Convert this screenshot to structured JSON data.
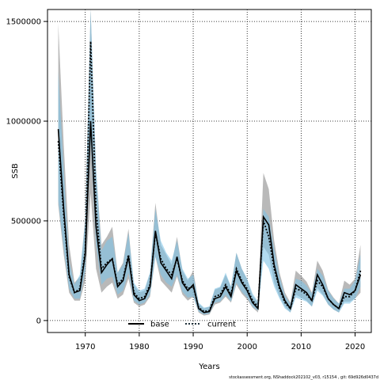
{
  "chart_data": {
    "type": "line",
    "xlabel": "Years",
    "ylabel": "SSB",
    "xlim": [
      1963,
      2023
    ],
    "ylim": [
      -60000,
      1560000
    ],
    "x_ticks": [
      1970,
      1980,
      1990,
      2000,
      2010,
      2020
    ],
    "y_ticks": [
      0,
      500000,
      1000000,
      1500000
    ],
    "y_tick_labels": [
      "0",
      "500000",
      "1000000",
      "1500000"
    ],
    "grid": true,
    "legend_placement": "bottom-center",
    "footnote": "stockassessment.org, NShaddock202102_v03, r15154 , git: 69d926d0437d",
    "x": [
      1965,
      1966,
      1967,
      1968,
      1969,
      1970,
      1971,
      1972,
      1973,
      1974,
      1975,
      1976,
      1977,
      1978,
      1979,
      1980,
      1981,
      1982,
      1983,
      1984,
      1985,
      1986,
      1987,
      1988,
      1989,
      1990,
      1991,
      1992,
      1993,
      1994,
      1995,
      1996,
      1997,
      1998,
      1999,
      2000,
      2001,
      2002,
      2003,
      2004,
      2005,
      2006,
      2007,
      2008,
      2009,
      2010,
      2011,
      2012,
      2013,
      2014,
      2015,
      2016,
      2017,
      2018,
      2019,
      2020,
      2021
    ],
    "series": [
      {
        "name": "base",
        "color": "#000000",
        "band_color": "#808080",
        "values": [
          960000,
          560000,
          230000,
          140000,
          150000,
          330000,
          1000000,
          470000,
          240000,
          280000,
          310000,
          170000,
          200000,
          320000,
          130000,
          100000,
          110000,
          170000,
          450000,
          290000,
          250000,
          210000,
          320000,
          190000,
          150000,
          180000,
          60000,
          40000,
          45000,
          110000,
          120000,
          170000,
          120000,
          250000,
          190000,
          150000,
          90000,
          60000,
          520000,
          480000,
          280000,
          170000,
          100000,
          60000,
          180000,
          160000,
          140000,
          100000,
          230000,
          180000,
          110000,
          80000,
          60000,
          140000,
          130000,
          150000,
          230000
        ],
        "lower": [
          580000,
          330000,
          140000,
          100000,
          100000,
          200000,
          640000,
          260000,
          140000,
          170000,
          190000,
          110000,
          130000,
          210000,
          90000,
          70000,
          80000,
          120000,
          320000,
          200000,
          170000,
          140000,
          220000,
          130000,
          100000,
          120000,
          40000,
          25000,
          30000,
          80000,
          90000,
          120000,
          90000,
          180000,
          135000,
          105000,
          65000,
          40000,
          370000,
          330000,
          190000,
          120000,
          70000,
          40000,
          130000,
          115000,
          100000,
          70000,
          165000,
          130000,
          80000,
          55000,
          40000,
          95000,
          95000,
          110000,
          140000
        ],
        "upper": [
          1490000,
          880000,
          380000,
          190000,
          220000,
          520000,
          1560000,
          760000,
          380000,
          420000,
          470000,
          240000,
          290000,
          460000,
          180000,
          140000,
          150000,
          240000,
          590000,
          380000,
          330000,
          280000,
          420000,
          250000,
          200000,
          250000,
          85000,
          60000,
          70000,
          155000,
          165000,
          230000,
          170000,
          340000,
          260000,
          205000,
          125000,
          90000,
          740000,
          660000,
          400000,
          240000,
          140000,
          90000,
          250000,
          225000,
          195000,
          140000,
          300000,
          250000,
          155000,
          115000,
          85000,
          200000,
          180000,
          210000,
          380000
        ]
      },
      {
        "name": "current",
        "color": "#000000",
        "line_style": "dotted",
        "band_color": "#7ec3e6",
        "values": [
          900000,
          530000,
          220000,
          140000,
          160000,
          350000,
          1400000,
          560000,
          260000,
          290000,
          310000,
          180000,
          210000,
          330000,
          140000,
          110000,
          120000,
          180000,
          440000,
          310000,
          260000,
          230000,
          310000,
          200000,
          160000,
          170000,
          65000,
          45000,
          50000,
          120000,
          130000,
          180000,
          130000,
          260000,
          200000,
          160000,
          100000,
          70000,
          500000,
          420000,
          260000,
          160000,
          90000,
          60000,
          160000,
          150000,
          130000,
          100000,
          200000,
          170000,
          110000,
          80000,
          60000,
          120000,
          120000,
          150000,
          250000
        ],
        "lower": [
          600000,
          360000,
          160000,
          110000,
          110000,
          250000,
          900000,
          380000,
          180000,
          210000,
          220000,
          130000,
          150000,
          240000,
          100000,
          80000,
          90000,
          130000,
          320000,
          230000,
          190000,
          170000,
          230000,
          145000,
          115000,
          120000,
          45000,
          30000,
          35000,
          90000,
          95000,
          130000,
          95000,
          190000,
          145000,
          115000,
          70000,
          50000,
          300000,
          260000,
          170000,
          110000,
          60000,
          40000,
          115000,
          105000,
          95000,
          70000,
          150000,
          125000,
          80000,
          55000,
          40000,
          85000,
          85000,
          110000,
          170000
        ],
        "upper": [
          1250000,
          760000,
          300000,
          180000,
          230000,
          500000,
          1560000,
          760000,
          350000,
          400000,
          420000,
          240000,
          280000,
          440000,
          190000,
          150000,
          160000,
          240000,
          560000,
          400000,
          340000,
          300000,
          400000,
          260000,
          210000,
          230000,
          90000,
          65000,
          70000,
          160000,
          170000,
          240000,
          170000,
          340000,
          260000,
          210000,
          135000,
          95000,
          560000,
          520000,
          360000,
          220000,
          125000,
          85000,
          210000,
          200000,
          175000,
          135000,
          260000,
          225000,
          150000,
          110000,
          85000,
          160000,
          160000,
          200000,
          330000
        ]
      }
    ]
  }
}
